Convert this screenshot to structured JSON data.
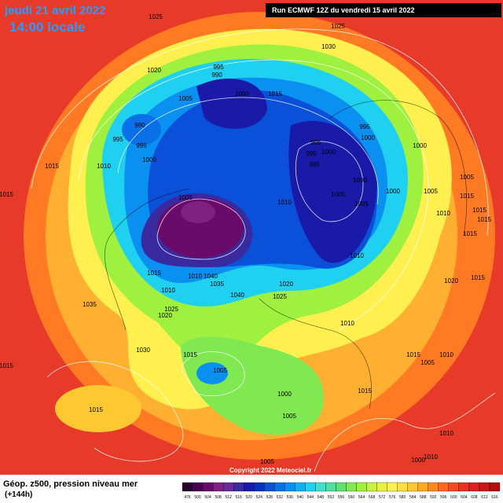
{
  "header": {
    "date": "jeudi 21 avril 2022",
    "time": "14:00 locale",
    "run": "Run ECMWF 12Z du vendredi 15 avril 2022"
  },
  "copyright": "Copyright 2022 Meteociel.fr",
  "footer": {
    "title": "Géop. z500, pression niveau mer",
    "lead": "(+144h)"
  },
  "colorbar": {
    "ticks": [
      476,
      500,
      504,
      508,
      512,
      516,
      520,
      524,
      528,
      532,
      536,
      540,
      544,
      548,
      552,
      556,
      560,
      564,
      568,
      572,
      576,
      580,
      584,
      588,
      592,
      596,
      600,
      604,
      608,
      612,
      616
    ],
    "colors": [
      "#2a0030",
      "#4a0050",
      "#6a0a6a",
      "#802080",
      "#6a2a9a",
      "#3a2aa0",
      "#1a1aa8",
      "#0a30c0",
      "#0a50d8",
      "#0a70e8",
      "#0a90f0",
      "#10b0f0",
      "#20d0f0",
      "#40e0d0",
      "#50e0a0",
      "#60e070",
      "#80e850",
      "#a0f040",
      "#c8f040",
      "#e8f040",
      "#fff050",
      "#ffe040",
      "#ffc830",
      "#ffa828",
      "#ff8820",
      "#ff6820",
      "#f84820",
      "#e83020",
      "#d82020",
      "#c81818",
      "#b01010"
    ]
  },
  "isobar_labels": [
    "1025",
    "1025",
    "1030",
    "1020",
    "995",
    "990",
    "1000",
    "1015",
    "1005",
    "990",
    "995",
    "995",
    "1010",
    "1015",
    "1000",
    "995",
    "995",
    "1000",
    "1000",
    "995",
    "995",
    "1000",
    "1000",
    "1005",
    "1005",
    "1000",
    "1010",
    "1005",
    "1005",
    "1005",
    "1015",
    "1010",
    "1015",
    "1015",
    "1015",
    "1015",
    "1010",
    "1040",
    "1010",
    "1035",
    "1040",
    "1020",
    "1025",
    "1010",
    "1035",
    "1025",
    "1020",
    "1010",
    "1030",
    "1015",
    "1005",
    "1015",
    "1005",
    "1010",
    "1015",
    "1000",
    "1005",
    "1015",
    "1005",
    "1010",
    "1010",
    "1000",
    "1015",
    "1015",
    "1020",
    "1015"
  ]
}
